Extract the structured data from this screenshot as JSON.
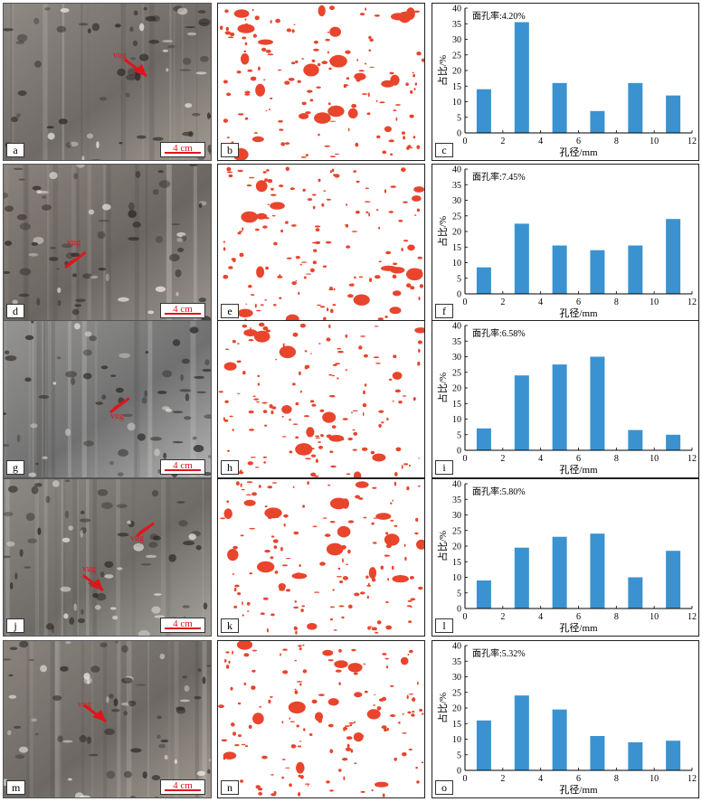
{
  "colors": {
    "pore": "#e8452c",
    "bar": "#3a93d0",
    "arrow": "#e0151b"
  },
  "scale_label": "4 cm",
  "vug_label": "vug",
  "rows": [
    {
      "photo_letter": "a",
      "mask_letter": "b",
      "chart_letter": "c",
      "vug_labels": [
        "vug"
      ]
    },
    {
      "photo_letter": "d",
      "mask_letter": "e",
      "chart_letter": "f",
      "vug_labels": [
        "vug"
      ]
    },
    {
      "photo_letter": "g",
      "mask_letter": "h",
      "chart_letter": "i",
      "vug_labels": [
        "vug"
      ]
    },
    {
      "photo_letter": "j",
      "mask_letter": "k",
      "chart_letter": "l",
      "vug_labels": [
        "vug",
        "vug"
      ]
    },
    {
      "photo_letter": "m",
      "mask_letter": "n",
      "chart_letter": "o",
      "vug_labels": [
        "vug"
      ]
    }
  ],
  "chart_data": [
    {
      "type": "bar",
      "annotation": "面孔率:4.20%",
      "x": [
        1,
        3,
        5,
        7,
        9,
        11
      ],
      "values": [
        14,
        35.5,
        16,
        7,
        16,
        12
      ],
      "xlabel": "孔径/mm",
      "ylabel": "占比/%",
      "xlim": [
        0,
        12
      ],
      "ylim": [
        0,
        40
      ],
      "xticks": [
        0,
        2,
        4,
        6,
        8,
        10,
        12
      ],
      "yticks": [
        0,
        5,
        10,
        15,
        20,
        25,
        30,
        35,
        40
      ]
    },
    {
      "type": "bar",
      "annotation": "面孔率:7.45%",
      "x": [
        1,
        3,
        5,
        7,
        9,
        11
      ],
      "values": [
        8.5,
        22.5,
        15.5,
        14,
        15.5,
        24
      ],
      "xlabel": "孔径/mm",
      "ylabel": "占比/%",
      "xlim": [
        0,
        12
      ],
      "ylim": [
        0,
        40
      ],
      "xticks": [
        0,
        2,
        4,
        6,
        8,
        10,
        12
      ],
      "yticks": [
        0,
        5,
        10,
        15,
        20,
        25,
        30,
        35,
        40
      ]
    },
    {
      "type": "bar",
      "annotation": "面孔率:6.58%",
      "x": [
        1,
        3,
        5,
        7,
        9,
        11
      ],
      "values": [
        7,
        24,
        27.5,
        30,
        6.5,
        5
      ],
      "xlabel": "孔径/mm",
      "ylabel": "占比/%",
      "xlim": [
        0,
        12
      ],
      "ylim": [
        0,
        40
      ],
      "xticks": [
        0,
        2,
        4,
        6,
        8,
        10,
        12
      ],
      "yticks": [
        0,
        5,
        10,
        15,
        20,
        25,
        30,
        35,
        40
      ]
    },
    {
      "type": "bar",
      "annotation": "面孔率:5.80%",
      "x": [
        1,
        3,
        5,
        7,
        9,
        11
      ],
      "values": [
        9,
        19.5,
        23,
        24,
        10,
        18.5
      ],
      "xlabel": "孔径/mm",
      "ylabel": "占比/%",
      "xlim": [
        0,
        12
      ],
      "ylim": [
        0,
        40
      ],
      "xticks": [
        0,
        2,
        4,
        6,
        8,
        10,
        12
      ],
      "yticks": [
        0,
        5,
        10,
        15,
        20,
        25,
        30,
        35,
        40
      ]
    },
    {
      "type": "bar",
      "annotation": "面孔率:5.32%",
      "x": [
        1,
        3,
        5,
        7,
        9,
        11
      ],
      "values": [
        16,
        24,
        19.5,
        11,
        9,
        9.5
      ],
      "xlabel": "孔径/mm",
      "ylabel": "占比/%",
      "xlim": [
        0,
        12
      ],
      "ylim": [
        0,
        40
      ],
      "xticks": [
        0,
        2,
        4,
        6,
        8,
        10,
        12
      ],
      "yticks": [
        0,
        5,
        10,
        15,
        20,
        25,
        30,
        35,
        40
      ]
    }
  ]
}
